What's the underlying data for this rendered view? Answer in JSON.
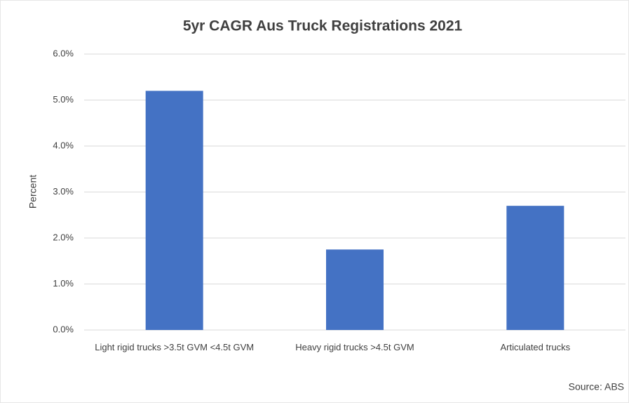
{
  "chart_data": {
    "type": "bar",
    "title": "5yr CAGR Aus Truck Registrations 2021",
    "ylabel": "Percent",
    "categories": [
      "Light rigid trucks >3.5t GVM <4.5t GVM",
      "Heavy rigid trucks >4.5t GVM",
      "Articulated trucks"
    ],
    "values": [
      5.2,
      1.75,
      2.7
    ],
    "color": "#4472c4",
    "ylim": [
      0,
      6
    ],
    "yticks": [
      {
        "value": 0,
        "label": "0.0%"
      },
      {
        "value": 1,
        "label": "1.0%"
      },
      {
        "value": 2,
        "label": "2.0%"
      },
      {
        "value": 3,
        "label": "3.0%"
      },
      {
        "value": 4,
        "label": "4.0%"
      },
      {
        "value": 5,
        "label": "5.0%"
      },
      {
        "value": 6,
        "label": "6.0%"
      }
    ],
    "grid": true,
    "annotation": "Source: ABS"
  }
}
